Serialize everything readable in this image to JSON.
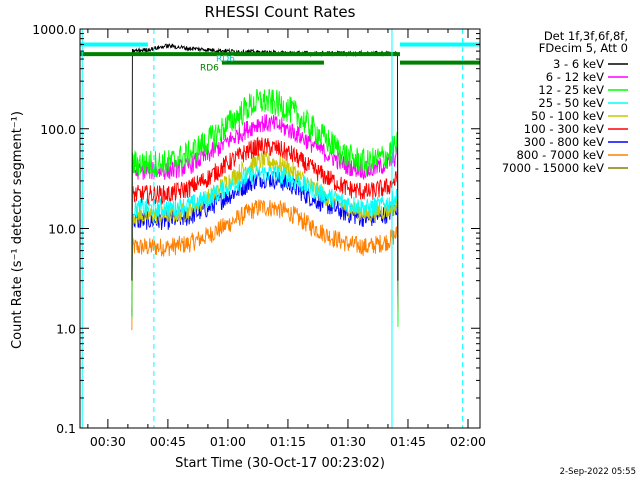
{
  "chart_data": {
    "type": "line",
    "title": "RHESSI Count Rates",
    "xlabel": "Start Time (30-Oct-17 00:23:02)",
    "ylabel": "Count Rate (s⁻¹ detector segment⁻¹)",
    "y_scale": "log",
    "ylim": [
      0.1,
      1000
    ],
    "xlim": [
      "00:23:02",
      "02:03:00"
    ],
    "x_ticks": [
      "00:30",
      "00:45",
      "01:00",
      "01:15",
      "01:30",
      "01:45",
      "02:00"
    ],
    "y_ticks": [
      "0.1",
      "1.0",
      "10.0",
      "100.0",
      "1000.0"
    ],
    "grid": false,
    "legend_position": "right",
    "legend_header": [
      "Det 1f,3f,6f,8f,",
      "FDecim 5, Att 0"
    ],
    "series": [
      {
        "name": "3 - 6 keV",
        "color": "#000000",
        "x": [
          "00:36:00",
          "00:40:00",
          "00:45:00",
          "00:50:00",
          "01:00:00",
          "01:10:00",
          "01:20:00",
          "01:30:00",
          "01:40:00",
          "01:42:30"
        ],
        "y": [
          600,
          620,
          680,
          640,
          600,
          580,
          570,
          570,
          570,
          560
        ]
      },
      {
        "name": "6 - 12 keV",
        "color": "#ff00ff",
        "x": [
          "00:36:00",
          "00:45:00",
          "00:50:00",
          "00:55:00",
          "01:00:00",
          "01:05:00",
          "01:08:00",
          "01:12:00",
          "01:16:00",
          "01:20:00",
          "01:25:00",
          "01:30:00",
          "01:35:00",
          "01:40:00",
          "01:42:30"
        ],
        "y": [
          38,
          38,
          42,
          55,
          75,
          100,
          115,
          110,
          95,
          75,
          55,
          42,
          38,
          45,
          55
        ]
      },
      {
        "name": "12 - 25 keV",
        "color": "#00ff00",
        "x": [
          "00:36:00",
          "00:45:00",
          "00:50:00",
          "00:55:00",
          "01:00:00",
          "01:05:00",
          "01:08:00",
          "01:12:00",
          "01:16:00",
          "01:20:00",
          "01:25:00",
          "01:30:00",
          "01:35:00",
          "01:40:00",
          "01:42:30"
        ],
        "y": [
          45,
          45,
          55,
          75,
          110,
          165,
          190,
          180,
          150,
          110,
          75,
          52,
          45,
          55,
          70
        ]
      },
      {
        "name": "25 - 50 keV",
        "color": "#00ffff",
        "x": [
          "00:36:00",
          "00:45:00",
          "00:50:00",
          "00:55:00",
          "01:00:00",
          "01:05:00",
          "01:08:00",
          "01:12:00",
          "01:16:00",
          "01:20:00",
          "01:25:00",
          "01:30:00",
          "01:35:00",
          "01:40:00",
          "01:42:30"
        ],
        "y": [
          16,
          16,
          17,
          20,
          26,
          33,
          36,
          35,
          31,
          26,
          21,
          18,
          16,
          18,
          21
        ]
      },
      {
        "name": "50 - 100 keV",
        "color": "#c8c800",
        "x": [
          "00:36:00",
          "00:45:00",
          "00:50:00",
          "00:55:00",
          "01:00:00",
          "01:05:00",
          "01:08:00",
          "01:12:00",
          "01:16:00",
          "01:20:00",
          "01:25:00",
          "01:30:00",
          "01:35:00",
          "01:40:00",
          "01:42:30"
        ],
        "y": [
          13.5,
          13.5,
          15,
          20,
          30,
          42,
          48,
          46,
          38,
          28,
          20,
          16,
          14,
          15.5,
          17
        ]
      },
      {
        "name": "100 - 300 keV",
        "color": "#ff0000",
        "x": [
          "00:36:00",
          "00:45:00",
          "00:50:00",
          "00:55:00",
          "01:00:00",
          "01:05:00",
          "01:08:00",
          "01:12:00",
          "01:16:00",
          "01:20:00",
          "01:25:00",
          "01:30:00",
          "01:35:00",
          "01:40:00",
          "01:42:30"
        ],
        "y": [
          22,
          22,
          25,
          32,
          45,
          60,
          67,
          64,
          55,
          42,
          32,
          25,
          23,
          26,
          32
        ]
      },
      {
        "name": "300 - 800 keV",
        "color": "#0000ff",
        "x": [
          "00:36:00",
          "00:45:00",
          "00:50:00",
          "00:55:00",
          "01:00:00",
          "01:05:00",
          "01:08:00",
          "01:12:00",
          "01:16:00",
          "01:20:00",
          "01:25:00",
          "01:30:00",
          "01:35:00",
          "01:40:00",
          "01:42:30"
        ],
        "y": [
          12,
          12,
          13,
          16,
          21,
          28,
          32,
          31,
          27,
          21,
          17,
          14,
          12.5,
          14,
          17
        ]
      },
      {
        "name": "800 - 7000 keV",
        "color": "#ff8000",
        "x": [
          "00:36:00",
          "00:45:00",
          "00:50:00",
          "00:55:00",
          "01:00:00",
          "01:05:00",
          "01:08:00",
          "01:12:00",
          "01:16:00",
          "01:20:00",
          "01:25:00",
          "01:30:00",
          "01:35:00",
          "01:40:00",
          "01:42:30"
        ],
        "y": [
          6.5,
          6.5,
          7,
          8.5,
          11,
          14.5,
          16.5,
          16,
          14,
          11,
          8.5,
          7,
          6.5,
          7.5,
          9
        ]
      },
      {
        "name": "7000 - 15000 keV",
        "color": "#808000",
        "x": [],
        "y": []
      }
    ],
    "annotations": [
      {
        "text": "RD6",
        "x": "00:58:30",
        "y": 420,
        "color": "#008000"
      },
      {
        "text": "RD6",
        "x": "01:02:30",
        "y": 520,
        "color": "#00c8c8"
      }
    ],
    "vertical_lines": [
      {
        "x": "00:23:35",
        "style": "solid",
        "color": "#00ffff"
      },
      {
        "x": "00:41:30",
        "style": "dashed",
        "color": "#00ffff"
      },
      {
        "x": "01:41:00",
        "style": "solid",
        "color": "#00ffff"
      },
      {
        "x": "01:58:40",
        "style": "dashed",
        "color": "#00ffff"
      }
    ],
    "state_bars": [
      {
        "color": "#00ffff",
        "y": 700,
        "segments": [
          [
            "00:23:02",
            "00:40:00"
          ],
          [
            "01:43:00",
            "02:03:00"
          ]
        ]
      },
      {
        "color": "#008000",
        "y": 560,
        "segments": [
          [
            "00:23:02",
            "01:43:00"
          ]
        ]
      },
      {
        "color": "#008000",
        "y": 460,
        "segments": [
          [
            "00:58:30",
            "01:24:00"
          ],
          [
            "01:43:00",
            "02:03:00"
          ]
        ]
      }
    ],
    "footer_timestamp": "2-Sep-2022 05:55"
  }
}
